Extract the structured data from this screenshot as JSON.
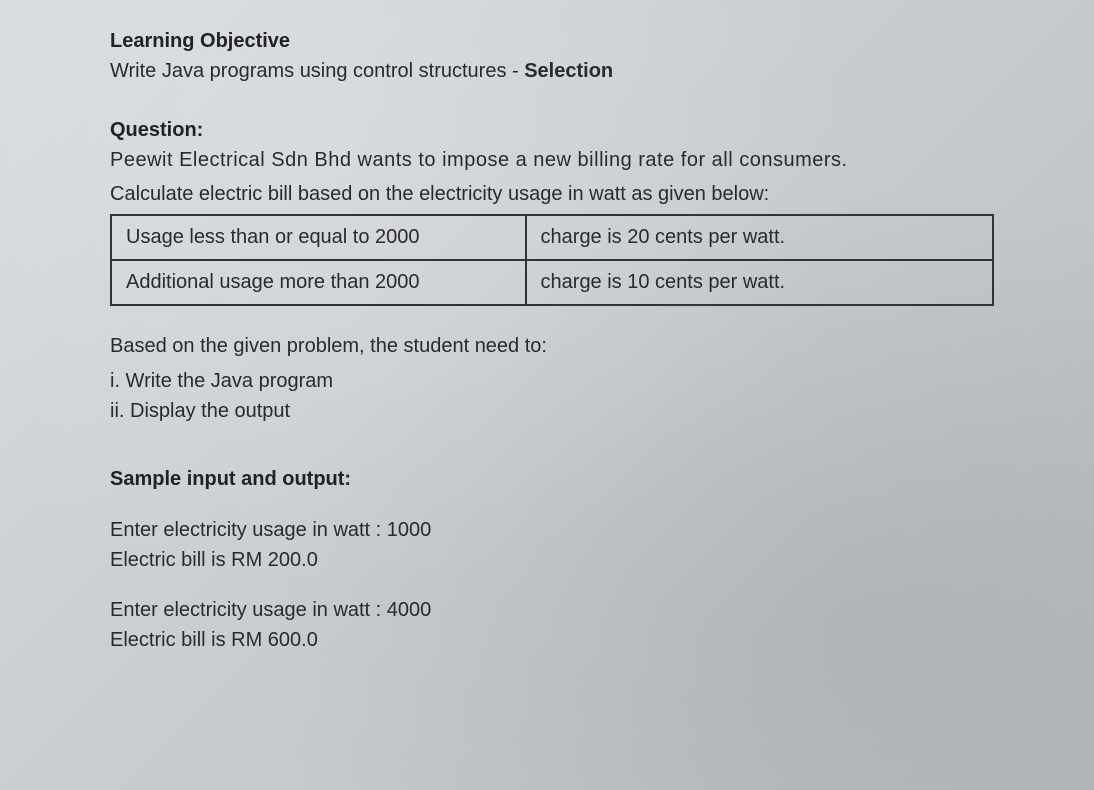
{
  "headings": {
    "learning_objective": "Learning Objective",
    "question": "Question:",
    "sample": "Sample input and output:"
  },
  "objective_text_prefix": "Write Java programs using control structures - ",
  "objective_text_bold": "Selection",
  "question_text1": "Peewit Electrical Sdn Bhd wants to impose a new billing rate for all consumers.",
  "question_text2": "Calculate electric bill based on the electricity usage in watt as given below:",
  "table": {
    "rows": [
      {
        "condition": "Usage less than or equal to 2000",
        "charge": "charge is 20 cents per watt."
      },
      {
        "condition": "Additional usage more than 2000",
        "charge": "charge is 10 cents per watt."
      }
    ]
  },
  "tasks_intro": "Based on the given problem, the student need to:",
  "tasks": {
    "i": "i. Write the Java program",
    "ii": "ii. Display the output"
  },
  "samples": {
    "run1": {
      "input": "Enter electricity usage in watt : 1000",
      "output": "Electric bill is RM 200.0"
    },
    "run2": {
      "input": "Enter electricity usage in watt : 4000",
      "output": "Electric bill is RM 600.0"
    }
  },
  "style": {
    "background_gradient": [
      "#d8dce0",
      "#c8ccd0",
      "#b8bcc0"
    ],
    "text_color": "#1a1a1a",
    "border_color": "#333333",
    "font_family": "Arial",
    "heading_fontsize": 20,
    "body_fontsize": 20,
    "heading_weight": "bold",
    "table_border_width": 2,
    "table_cell_padding": "10px 14px"
  }
}
